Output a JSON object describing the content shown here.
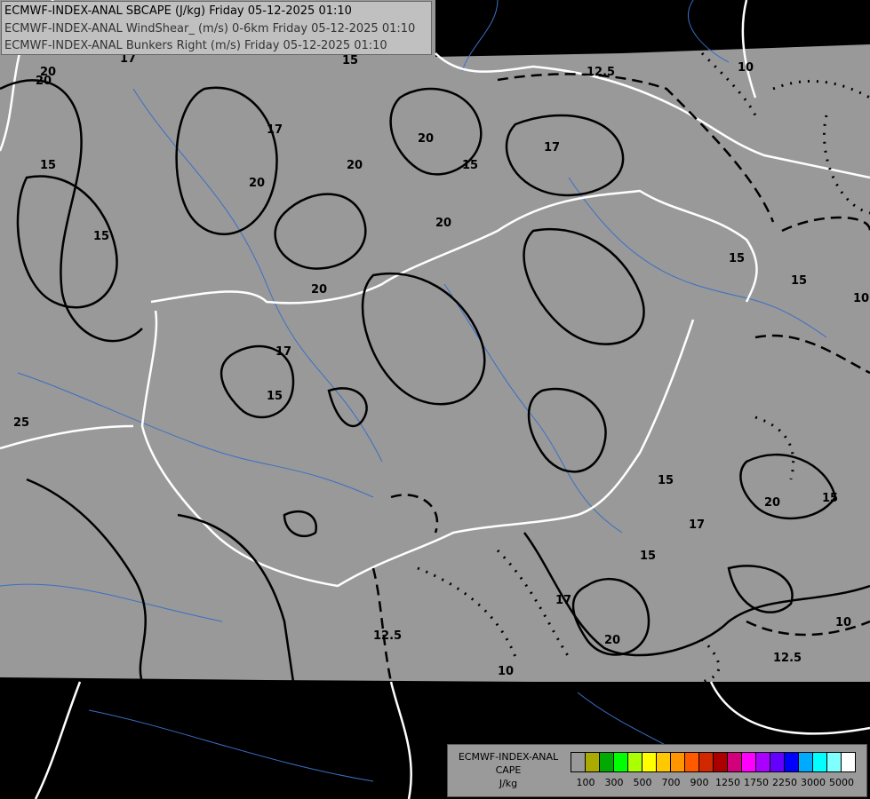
{
  "titles": [
    "ECMWF-INDEX-ANAL SBCAPE (J/kg) Friday 05-12-2025 01:10",
    "ECMWF-INDEX-ANAL WindShear_ (m/s) 0-6km Friday 05-12-2025 01:10",
    "ECMWF-INDEX-ANAL Bunkers Right (m/s) Friday 05-12-2025 01:10"
  ],
  "legend": {
    "model": "ECMWF-INDEX-ANAL",
    "field": "CAPE",
    "unit": "J/kg",
    "colors": [
      "#999999",
      "#aaaa00",
      "#00aa00",
      "#00ff00",
      "#aaff00",
      "#ffff00",
      "#ffc800",
      "#ff9600",
      "#ff5a00",
      "#d22800",
      "#aa0000",
      "#d2007a",
      "#ff00ff",
      "#aa00ff",
      "#6400ff",
      "#0000ff",
      "#00aaff",
      "#00ffff",
      "#80ffff",
      "#ffffff"
    ],
    "ticks": [
      "100",
      "300",
      "500",
      "700",
      "900",
      "1250",
      "1750",
      "2250",
      "3000",
      "5000"
    ]
  },
  "map": {
    "field_color": "#999999",
    "outside_color": "#000000",
    "border_color": "#ffffff",
    "river_color": "#3a6fc4",
    "contour_labels": [
      "20",
      "17",
      "15",
      "20",
      "20",
      "20",
      "20",
      "17",
      "15",
      "20",
      "15",
      "17",
      "15",
      "15",
      "17",
      "25",
      "17",
      "15",
      "15",
      "20",
      "15",
      "20",
      "17",
      "15",
      "12.5",
      "10",
      "12.5",
      "10",
      "12.5",
      "10",
      "15",
      "10",
      "20"
    ]
  }
}
